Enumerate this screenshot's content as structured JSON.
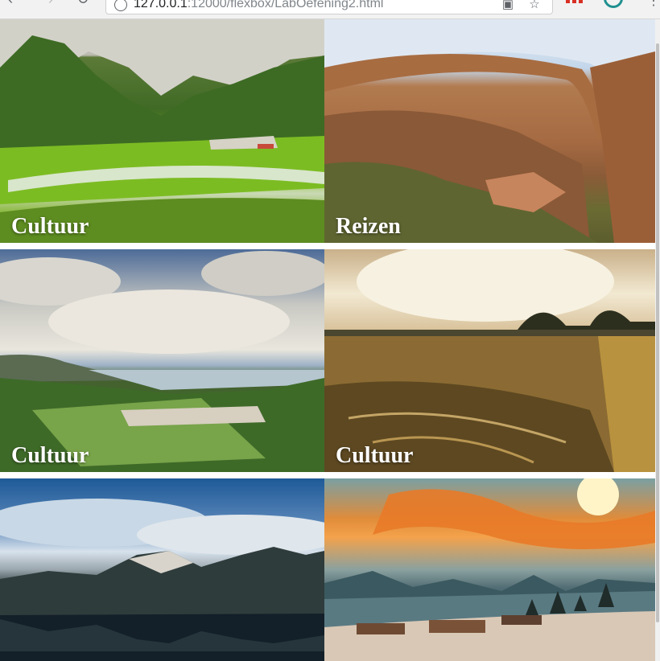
{
  "browser": {
    "url_host": "127.0.0.1",
    "url_path": ":12000/flexbox/LabOefening2.html"
  },
  "tiles": [
    {
      "caption": "Cultuur"
    },
    {
      "caption": "Reizen"
    },
    {
      "caption": "Cultuur"
    },
    {
      "caption": "Cultuur"
    },
    {
      "caption": ""
    },
    {
      "caption": ""
    }
  ]
}
